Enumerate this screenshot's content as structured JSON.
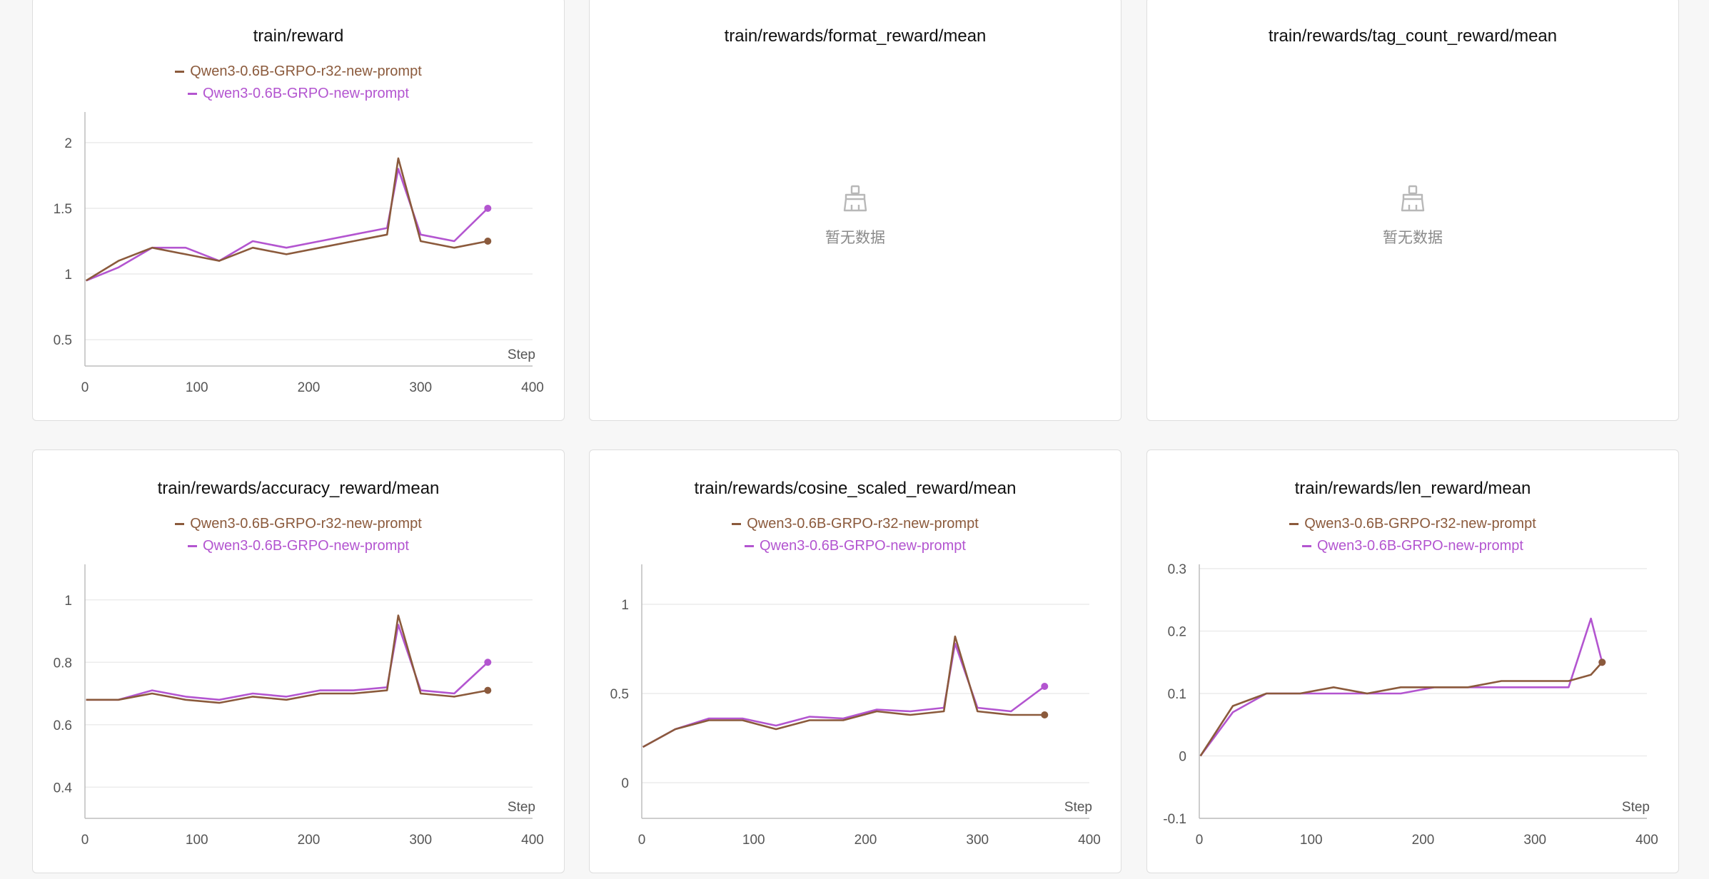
{
  "colors": {
    "series_a": "#8b5a3c",
    "series_b": "#b355d0"
  },
  "common": {
    "series_a_name": "Qwen3-0.6B-GRPO-r32-new-prompt",
    "series_b_name": "Qwen3-0.6B-GRPO-new-prompt",
    "step_label": "Step",
    "no_data_text": "暂无数据",
    "no_data_icon": "broom-icon"
  },
  "charts": [
    {
      "title": "train/reward",
      "has_data": true
    },
    {
      "title": "train/rewards/format_reward/mean",
      "has_data": false
    },
    {
      "title": "train/rewards/tag_count_reward/mean",
      "has_data": false
    },
    {
      "title": "train/rewards/accuracy_reward/mean",
      "has_data": true
    },
    {
      "title": "train/rewards/cosine_scaled_reward/mean",
      "has_data": true
    },
    {
      "title": "train/rewards/len_reward/mean",
      "has_data": true
    }
  ],
  "chart_data": [
    {
      "type": "line",
      "title": "train/reward",
      "xlabel": "Step",
      "ylabel": "",
      "xlim": [
        0,
        400
      ],
      "ylim": [
        0.3,
        2.2
      ],
      "xticks": [
        0,
        100,
        200,
        300,
        400
      ],
      "yticks": [
        0.5,
        1,
        1.5,
        2
      ],
      "ytick_labels": [
        "0.5",
        "1",
        "1.5",
        "2"
      ],
      "grid": "horizontal",
      "legend": "top-center",
      "x": [
        1,
        30,
        60,
        90,
        120,
        150,
        180,
        210,
        240,
        270,
        280,
        300,
        330,
        360
      ],
      "series": [
        {
          "name": "Qwen3-0.6B-GRPO-r32-new-prompt",
          "values": [
            0.95,
            1.1,
            1.2,
            1.15,
            1.1,
            1.2,
            1.15,
            1.2,
            1.25,
            1.3,
            1.88,
            1.25,
            1.2,
            1.25
          ]
        },
        {
          "name": "Qwen3-0.6B-GRPO-new-prompt",
          "values": [
            0.95,
            1.05,
            1.2,
            1.2,
            1.1,
            1.25,
            1.2,
            1.25,
            1.3,
            1.35,
            1.8,
            1.3,
            1.25,
            1.5
          ]
        }
      ]
    },
    {
      "type": "line",
      "title": "train/rewards/format_reward/mean",
      "series": []
    },
    {
      "type": "line",
      "title": "train/rewards/tag_count_reward/mean",
      "series": []
    },
    {
      "type": "line",
      "title": "train/rewards/accuracy_reward/mean",
      "xlabel": "Step",
      "ylabel": "",
      "xlim": [
        0,
        400
      ],
      "ylim": [
        0.3,
        1.1
      ],
      "xticks": [
        0,
        100,
        200,
        300,
        400
      ],
      "yticks": [
        0.4,
        0.6,
        0.8,
        1
      ],
      "ytick_labels": [
        "0.4",
        "0.6",
        "0.8",
        "1"
      ],
      "grid": "horizontal",
      "legend": "top-center",
      "x": [
        1,
        30,
        60,
        90,
        120,
        150,
        180,
        210,
        240,
        270,
        280,
        300,
        330,
        360
      ],
      "series": [
        {
          "name": "Qwen3-0.6B-GRPO-r32-new-prompt",
          "values": [
            0.68,
            0.68,
            0.7,
            0.68,
            0.67,
            0.69,
            0.68,
            0.7,
            0.7,
            0.71,
            0.95,
            0.7,
            0.69,
            0.71
          ]
        },
        {
          "name": "Qwen3-0.6B-GRPO-new-prompt",
          "values": [
            0.68,
            0.68,
            0.71,
            0.69,
            0.68,
            0.7,
            0.69,
            0.71,
            0.71,
            0.72,
            0.92,
            0.71,
            0.7,
            0.8
          ]
        }
      ]
    },
    {
      "type": "line",
      "title": "train/rewards/cosine_scaled_reward/mean",
      "xlabel": "Step",
      "ylabel": "",
      "xlim": [
        0,
        400
      ],
      "ylim": [
        -0.2,
        1.2
      ],
      "xticks": [
        0,
        100,
        200,
        300,
        400
      ],
      "yticks": [
        0,
        0.5,
        1
      ],
      "ytick_labels": [
        "0",
        "0.5",
        "1"
      ],
      "grid": "horizontal",
      "legend": "top-center",
      "x": [
        1,
        30,
        60,
        90,
        120,
        150,
        180,
        210,
        240,
        270,
        280,
        300,
        330,
        360
      ],
      "series": [
        {
          "name": "Qwen3-0.6B-GRPO-r32-new-prompt",
          "values": [
            0.2,
            0.3,
            0.35,
            0.35,
            0.3,
            0.35,
            0.35,
            0.4,
            0.38,
            0.4,
            0.82,
            0.4,
            0.38,
            0.38
          ]
        },
        {
          "name": "Qwen3-0.6B-GRPO-new-prompt",
          "values": [
            0.2,
            0.3,
            0.36,
            0.36,
            0.32,
            0.37,
            0.36,
            0.41,
            0.4,
            0.42,
            0.78,
            0.42,
            0.4,
            0.54
          ]
        }
      ]
    },
    {
      "type": "line",
      "title": "train/rewards/len_reward/mean",
      "xlabel": "Step",
      "ylabel": "",
      "xlim": [
        0,
        400
      ],
      "ylim": [
        -0.1,
        0.3
      ],
      "xticks": [
        0,
        100,
        200,
        300,
        400
      ],
      "yticks": [
        -0.1,
        0,
        0.1,
        0.2,
        0.3
      ],
      "ytick_labels": [
        "-0.1",
        "0",
        "0.1",
        "0.2",
        "0.3"
      ],
      "grid": "horizontal",
      "legend": "top-center",
      "x": [
        1,
        30,
        60,
        90,
        120,
        150,
        180,
        210,
        240,
        270,
        300,
        330,
        350,
        360
      ],
      "series": [
        {
          "name": "Qwen3-0.6B-GRPO-r32-new-prompt",
          "values": [
            0.0,
            0.08,
            0.1,
            0.1,
            0.11,
            0.1,
            0.11,
            0.11,
            0.11,
            0.12,
            0.12,
            0.12,
            0.13,
            0.15
          ]
        },
        {
          "name": "Qwen3-0.6B-GRPO-new-prompt",
          "values": [
            0.0,
            0.07,
            0.1,
            0.1,
            0.1,
            0.1,
            0.1,
            0.11,
            0.11,
            0.11,
            0.11,
            0.11,
            0.22,
            0.15
          ]
        }
      ]
    }
  ]
}
